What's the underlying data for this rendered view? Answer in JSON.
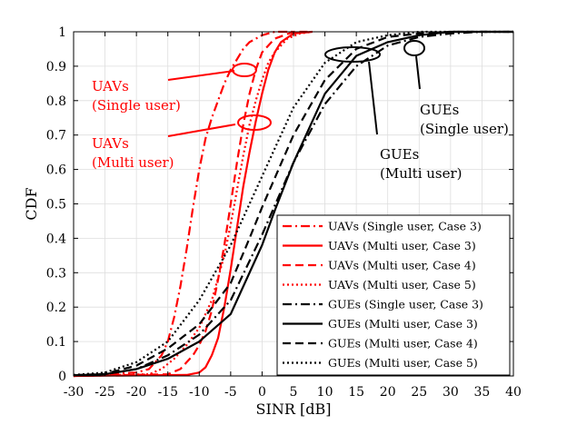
{
  "chart_data": {
    "type": "line",
    "title": "",
    "xlabel": "SINR [dB]",
    "ylabel": "CDF",
    "xlim": [
      -30,
      40
    ],
    "ylim": [
      0,
      1
    ],
    "xticks": [
      -30,
      -25,
      -20,
      -15,
      -10,
      -5,
      0,
      5,
      10,
      15,
      20,
      25,
      30,
      35,
      40
    ],
    "yticks": [
      0,
      0.1,
      0.2,
      0.3,
      0.4,
      0.5,
      0.6,
      0.7,
      0.8,
      0.9,
      1
    ],
    "grid": true,
    "legend_position": "bottom-right",
    "series": [
      {
        "name": "UAVs (Single user, Case 3)",
        "color": "#ff0000",
        "dash": "dashdot",
        "x": [
          -30,
          -20,
          -18,
          -16,
          -15,
          -14,
          -13,
          -12,
          -11,
          -10,
          -9,
          -8,
          -7,
          -6,
          -5,
          -4,
          -3,
          -2,
          0,
          2,
          5
        ],
        "y": [
          0,
          0.01,
          0.02,
          0.06,
          0.1,
          0.17,
          0.26,
          0.37,
          0.49,
          0.6,
          0.69,
          0.75,
          0.8,
          0.85,
          0.89,
          0.92,
          0.95,
          0.97,
          0.99,
          1.0,
          1.0
        ]
      },
      {
        "name": "UAVs (Multi user, Case 3)",
        "color": "#ff0000",
        "dash": "solid",
        "x": [
          -30,
          -12,
          -10,
          -9,
          -8,
          -7,
          -6,
          -5,
          -4,
          -3,
          -2,
          -1,
          0,
          1,
          2,
          3,
          5,
          8
        ],
        "y": [
          0,
          0.003,
          0.01,
          0.025,
          0.06,
          0.11,
          0.2,
          0.31,
          0.43,
          0.55,
          0.65,
          0.74,
          0.82,
          0.89,
          0.94,
          0.97,
          0.995,
          1.0
        ]
      },
      {
        "name": "UAVs (Multi user, Case 4)",
        "color": "#ff0000",
        "dash": "dashed",
        "x": [
          -30,
          -15,
          -13,
          -12,
          -11,
          -10,
          -9,
          -8,
          -7,
          -6,
          -5,
          -4,
          -3,
          -2,
          -1,
          0,
          2,
          5,
          8
        ],
        "y": [
          0,
          0.005,
          0.02,
          0.04,
          0.06,
          0.09,
          0.13,
          0.19,
          0.28,
          0.38,
          0.5,
          0.62,
          0.73,
          0.82,
          0.89,
          0.94,
          0.98,
          1.0,
          1.0
        ]
      },
      {
        "name": "UAVs (Multi user, Case 5)",
        "color": "#ff0000",
        "dash": "dotted",
        "x": [
          -30,
          -18,
          -16,
          -14,
          -12,
          -10,
          -8,
          -6,
          -5,
          -4,
          -3,
          -2,
          -1,
          0,
          1,
          2,
          4,
          6,
          8
        ],
        "y": [
          0,
          0.005,
          0.02,
          0.05,
          0.09,
          0.14,
          0.22,
          0.35,
          0.44,
          0.54,
          0.64,
          0.73,
          0.8,
          0.86,
          0.91,
          0.94,
          0.98,
          0.995,
          1.0
        ]
      },
      {
        "name": "GUEs (Single user, Case 3)",
        "color": "#000000",
        "dash": "dashdot",
        "x": [
          -30,
          -25,
          -20,
          -15,
          -10,
          -5,
          0,
          5,
          10,
          15,
          20,
          25,
          30,
          35,
          40
        ],
        "y": [
          0.002,
          0.005,
          0.02,
          0.06,
          0.12,
          0.22,
          0.41,
          0.62,
          0.79,
          0.9,
          0.96,
          0.985,
          0.995,
          1.0,
          1.0
        ]
      },
      {
        "name": "GUEs (Multi user, Case 3)",
        "color": "#000000",
        "dash": "solid",
        "x": [
          -30,
          -25,
          -20,
          -15,
          -10,
          -5,
          0,
          2,
          5,
          10,
          15,
          20,
          25,
          30,
          35,
          40
        ],
        "y": [
          0.002,
          0.005,
          0.02,
          0.05,
          0.1,
          0.18,
          0.38,
          0.48,
          0.62,
          0.82,
          0.93,
          0.97,
          0.99,
          1.0,
          1.0,
          1.0
        ]
      },
      {
        "name": "GUEs (Multi user, Case 4)",
        "color": "#000000",
        "dash": "dashed",
        "x": [
          -30,
          -25,
          -20,
          -15,
          -10,
          -5,
          -2,
          0,
          5,
          10,
          15,
          20,
          25,
          30,
          35,
          40
        ],
        "y": [
          0.002,
          0.006,
          0.03,
          0.08,
          0.15,
          0.27,
          0.4,
          0.49,
          0.7,
          0.86,
          0.95,
          0.985,
          0.995,
          1.0,
          1.0,
          1.0
        ]
      },
      {
        "name": "GUEs (Multi user, Case 5)",
        "color": "#000000",
        "dash": "dotted",
        "x": [
          -30,
          -25,
          -20,
          -15,
          -10,
          -5,
          -2,
          0,
          5,
          10,
          15,
          20,
          25,
          30,
          35,
          40
        ],
        "y": [
          0.003,
          0.01,
          0.04,
          0.1,
          0.22,
          0.38,
          0.5,
          0.58,
          0.78,
          0.91,
          0.97,
          0.99,
          1.0,
          1.0,
          1.0,
          1.0
        ]
      }
    ],
    "annotations": [
      {
        "text_lines": [
          "UAVs",
          "(Single user)"
        ],
        "color": "#ff0000"
      },
      {
        "text_lines": [
          "UAVs",
          "(Multi user)"
        ],
        "color": "#ff0000"
      },
      {
        "text_lines": [
          "GUEs",
          "(Single user)"
        ],
        "color": "#000000"
      },
      {
        "text_lines": [
          "GUEs",
          "(Multi user)"
        ],
        "color": "#000000"
      }
    ]
  }
}
